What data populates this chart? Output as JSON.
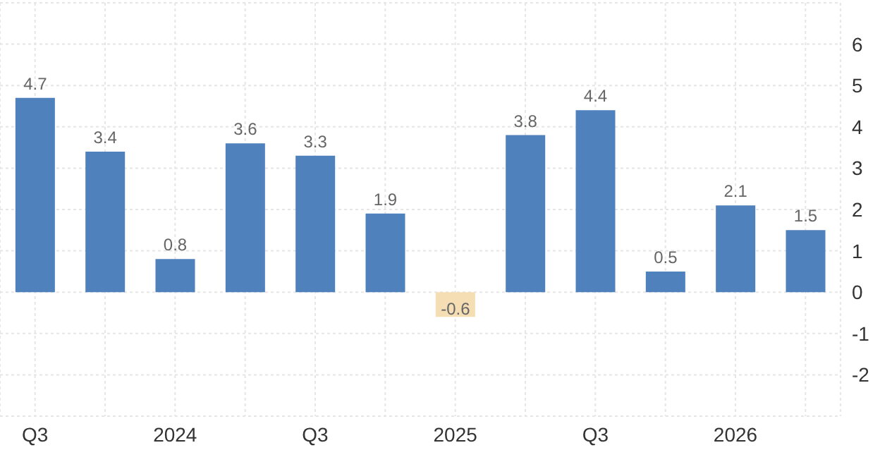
{
  "chart_data": {
    "type": "bar",
    "categories": [
      "Q3",
      null,
      "2024",
      null,
      "Q3",
      null,
      "2025",
      null,
      "Q3",
      null,
      "2026",
      null
    ],
    "values": [
      4.7,
      3.4,
      0.8,
      3.6,
      3.3,
      1.9,
      -0.6,
      3.8,
      4.4,
      0.5,
      2.1,
      1.5
    ],
    "colors": [
      "#4f81bd",
      "#4f81bd",
      "#4f81bd",
      "#4f81bd",
      "#4f81bd",
      "#4f81bd",
      "#f5deb3",
      "#4f81bd",
      "#4f81bd",
      "#4f81bd",
      "#4f81bd",
      "#4f81bd"
    ],
    "ylim": [
      -3,
      7
    ],
    "yticks": [
      -2,
      -1,
      0,
      1,
      2,
      3,
      4,
      5,
      6
    ],
    "grid": true,
    "data_labels": true
  }
}
